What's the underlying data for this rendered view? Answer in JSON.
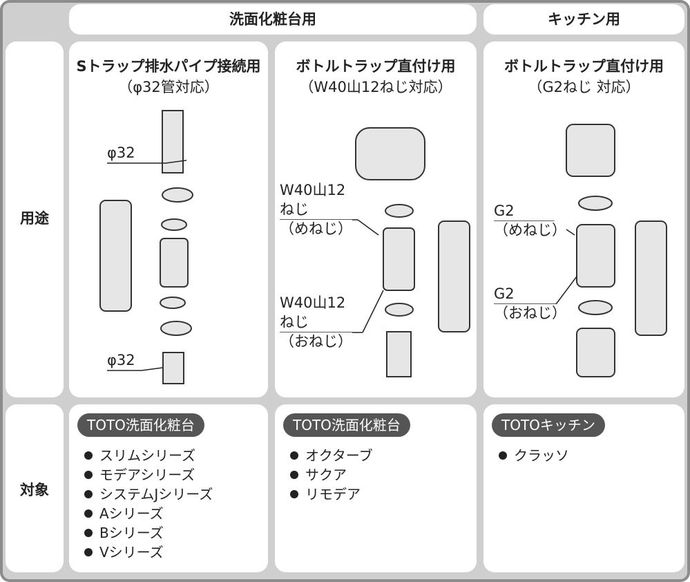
{
  "headers": [
    "洗面化粧台用",
    "キッチン用"
  ],
  "row_labels": [
    "用途",
    "対象"
  ],
  "columns": [
    {
      "title": "Sトラップ排水パイプ接続用",
      "subtitle": "（φ32管対応）",
      "callouts": [
        [
          "φ32"
        ],
        [
          "φ32"
        ]
      ],
      "brand": "TOTO洗面化粧台",
      "items": [
        "スリムシリーズ",
        "モデアシリーズ",
        "システムJシリーズ",
        "Aシリーズ",
        "Bシリーズ",
        "Vシリーズ"
      ]
    },
    {
      "title": "ボトルトラップ直付け用",
      "subtitle": "（W40山12ねじ対応）",
      "callouts": [
        [
          "W40山12",
          "ねじ",
          "（めねじ）"
        ],
        [
          "W40山12",
          "ねじ",
          "（おねじ）"
        ]
      ],
      "brand": "TOTO洗面化粧台",
      "items": [
        "オクターブ",
        "サクア",
        "リモデア"
      ]
    },
    {
      "title": "ボトルトラップ直付け用",
      "subtitle": "（G2ねじ 対応）",
      "callouts": [
        [
          "G2",
          "（めねじ）"
        ],
        [
          "G2",
          "（おねじ）"
        ]
      ],
      "brand": "TOTOキッチン",
      "items": [
        "クラッソ"
      ]
    }
  ]
}
